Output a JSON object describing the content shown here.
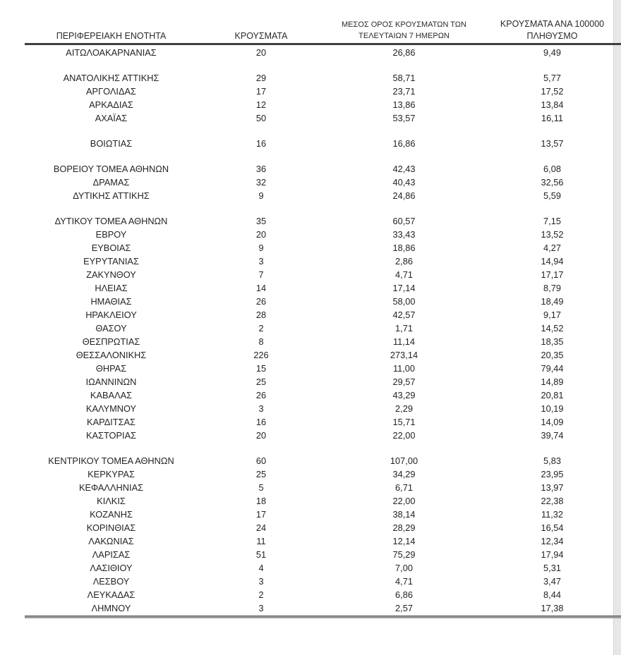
{
  "table": {
    "columns": [
      {
        "label": "ΠΕΡΙΦΕΡΕΙΑΚΗ ΕΝΟΤΗΤΑ"
      },
      {
        "label": "ΚΡΟΥΣΜΑΤΑ"
      },
      {
        "label": "ΜΕΣΟΣ ΟΡΟΣ ΚΡΟΥΣΜΑΤΩΝ ΤΩΝ ΤΕΛΕΥΤΑΙΩΝ 7 ΗΜΕΡΩΝ",
        "line1": "ΜΕΣΟΣ ΟΡΟΣ ΚΡΟΥΣΜΑΤΩΝ ΤΩΝ",
        "line2": "ΤΕΛΕΥΤΑΙΩΝ 7 ΗΜΕΡΩΝ"
      },
      {
        "label": "ΚΡΟΥΣΜΑΤΑ ΑΝΑ 100000 ΠΛΗΘΥΣΜΟ",
        "line1": "ΚΡΟΥΣΜΑΤΑ ΑΝΑ 100000",
        "line2": "ΠΛΗΘΥΣΜΟ"
      }
    ],
    "groups": [
      [
        {
          "region": "ΑΙΤΩΛΟΑΚΑΡΝΑΝΙΑΣ",
          "cases": "20",
          "avg7": "26,86",
          "per100k": "9,49"
        }
      ],
      [
        {
          "region": "ΑΝΑΤΟΛΙΚΗΣ ΑΤΤΙΚΗΣ",
          "cases": "29",
          "avg7": "58,71",
          "per100k": "5,77"
        },
        {
          "region": "ΑΡΓΟΛΙΔΑΣ",
          "cases": "17",
          "avg7": "23,71",
          "per100k": "17,52"
        },
        {
          "region": "ΑΡΚΑΔΙΑΣ",
          "cases": "12",
          "avg7": "13,86",
          "per100k": "13,84"
        },
        {
          "region": "ΑΧΑΪΑΣ",
          "cases": "50",
          "avg7": "53,57",
          "per100k": "16,11"
        }
      ],
      [
        {
          "region": "ΒΟΙΩΤΙΑΣ",
          "cases": "16",
          "avg7": "16,86",
          "per100k": "13,57"
        }
      ],
      [
        {
          "region": "ΒΟΡΕΙΟΥ ΤΟΜΕΑ ΑΘΗΝΩΝ",
          "cases": "36",
          "avg7": "42,43",
          "per100k": "6,08"
        },
        {
          "region": "ΔΡΑΜΑΣ",
          "cases": "32",
          "avg7": "40,43",
          "per100k": "32,56"
        },
        {
          "region": "ΔΥΤΙΚΗΣ ΑΤΤΙΚΗΣ",
          "cases": "9",
          "avg7": "24,86",
          "per100k": "5,59"
        }
      ],
      [
        {
          "region": "ΔΥΤΙΚΟΥ ΤΟΜΕΑ ΑΘΗΝΩΝ",
          "cases": "35",
          "avg7": "60,57",
          "per100k": "7,15"
        },
        {
          "region": "ΕΒΡΟΥ",
          "cases": "20",
          "avg7": "33,43",
          "per100k": "13,52"
        },
        {
          "region": "ΕΥΒΟΙΑΣ",
          "cases": "9",
          "avg7": "18,86",
          "per100k": "4,27"
        },
        {
          "region": "ΕΥΡΥΤΑΝΙΑΣ",
          "cases": "3",
          "avg7": "2,86",
          "per100k": "14,94"
        },
        {
          "region": "ΖΑΚΥΝΘΟΥ",
          "cases": "7",
          "avg7": "4,71",
          "per100k": "17,17"
        },
        {
          "region": "ΗΛΕΙΑΣ",
          "cases": "14",
          "avg7": "17,14",
          "per100k": "8,79"
        },
        {
          "region": "ΗΜΑΘΙΑΣ",
          "cases": "26",
          "avg7": "58,00",
          "per100k": "18,49"
        },
        {
          "region": "ΗΡΑΚΛΕΙΟΥ",
          "cases": "28",
          "avg7": "42,57",
          "per100k": "9,17"
        },
        {
          "region": "ΘΑΣΟΥ",
          "cases": "2",
          "avg7": "1,71",
          "per100k": "14,52"
        },
        {
          "region": "ΘΕΣΠΡΩΤΙΑΣ",
          "cases": "8",
          "avg7": "11,14",
          "per100k": "18,35"
        },
        {
          "region": "ΘΕΣΣΑΛΟΝΙΚΗΣ",
          "cases": "226",
          "avg7": "273,14",
          "per100k": "20,35"
        },
        {
          "region": "ΘΗΡΑΣ",
          "cases": "15",
          "avg7": "11,00",
          "per100k": "79,44"
        },
        {
          "region": "ΙΩΑΝΝΙΝΩΝ",
          "cases": "25",
          "avg7": "29,57",
          "per100k": "14,89"
        },
        {
          "region": "ΚΑΒΑΛΑΣ",
          "cases": "26",
          "avg7": "43,29",
          "per100k": "20,81"
        },
        {
          "region": "ΚΑΛΥΜΝΟΥ",
          "cases": "3",
          "avg7": "2,29",
          "per100k": "10,19"
        },
        {
          "region": "ΚΑΡΔΙΤΣΑΣ",
          "cases": "16",
          "avg7": "15,71",
          "per100k": "14,09"
        },
        {
          "region": "ΚΑΣΤΟΡΙΑΣ",
          "cases": "20",
          "avg7": "22,00",
          "per100k": "39,74"
        }
      ],
      [
        {
          "region": "ΚΕΝΤΡΙΚΟΥ ΤΟΜΕΑ ΑΘΗΝΩΝ",
          "cases": "60",
          "avg7": "107,00",
          "per100k": "5,83"
        },
        {
          "region": "ΚΕΡΚΥΡΑΣ",
          "cases": "25",
          "avg7": "34,29",
          "per100k": "23,95"
        },
        {
          "region": "ΚΕΦΑΛΛΗΝΙΑΣ",
          "cases": "5",
          "avg7": "6,71",
          "per100k": "13,97"
        },
        {
          "region": "ΚΙΛΚΙΣ",
          "cases": "18",
          "avg7": "22,00",
          "per100k": "22,38"
        },
        {
          "region": "ΚΟΖΑΝΗΣ",
          "cases": "17",
          "avg7": "38,14",
          "per100k": "11,32"
        },
        {
          "region": "ΚΟΡΙΝΘΙΑΣ",
          "cases": "24",
          "avg7": "28,29",
          "per100k": "16,54"
        },
        {
          "region": "ΛΑΚΩΝΙΑΣ",
          "cases": "11",
          "avg7": "12,14",
          "per100k": "12,34"
        },
        {
          "region": "ΛΑΡΙΣΑΣ",
          "cases": "51",
          "avg7": "75,29",
          "per100k": "17,94"
        },
        {
          "region": "ΛΑΣΙΘΙΟΥ",
          "cases": "4",
          "avg7": "7,00",
          "per100k": "5,31"
        },
        {
          "region": "ΛΕΣΒΟΥ",
          "cases": "3",
          "avg7": "4,71",
          "per100k": "3,47"
        },
        {
          "region": "ΛΕΥΚΑΔΑΣ",
          "cases": "2",
          "avg7": "6,86",
          "per100k": "8,44"
        },
        {
          "region": "ΛΗΜΝΟΥ",
          "cases": "3",
          "avg7": "2,57",
          "per100k": "17,38"
        }
      ]
    ]
  },
  "colors": {
    "text": "#262626",
    "header_rule": "#3b3b3b",
    "bottom_rule": "#9b9b9b",
    "scrollbar_track": "#e7e7e7"
  }
}
